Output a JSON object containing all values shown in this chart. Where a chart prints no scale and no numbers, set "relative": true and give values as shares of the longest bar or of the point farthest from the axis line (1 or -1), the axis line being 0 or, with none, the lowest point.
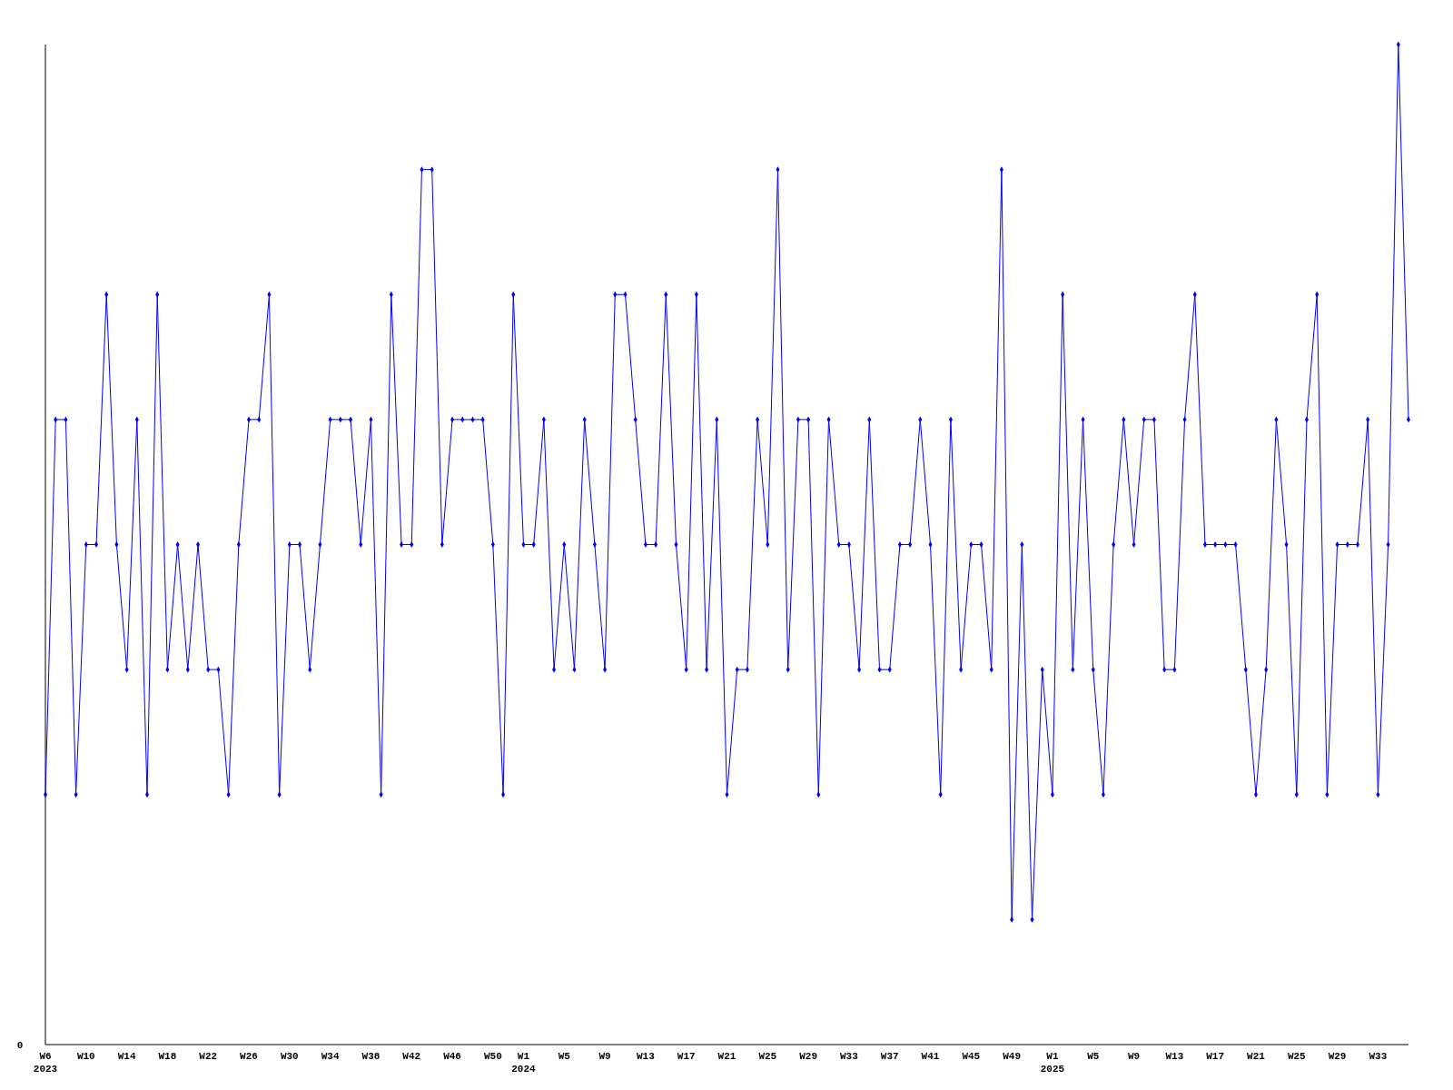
{
  "chart_data": {
    "type": "line",
    "relative": true,
    "marker": "diamond",
    "annotations": [
      "0"
    ],
    "categories": [
      "W6\n2023",
      null,
      null,
      null,
      "W10",
      null,
      null,
      null,
      "W14",
      null,
      null,
      null,
      "W18",
      null,
      null,
      null,
      "W22",
      null,
      null,
      null,
      "W26",
      null,
      null,
      null,
      "W30",
      null,
      null,
      null,
      "W34",
      null,
      null,
      null,
      "W38",
      null,
      null,
      null,
      "W42",
      null,
      null,
      null,
      "W46",
      null,
      null,
      null,
      "W50",
      null,
      null,
      "W1\n2024",
      null,
      null,
      null,
      "W5",
      null,
      null,
      null,
      "W9",
      null,
      null,
      null,
      "W13",
      null,
      null,
      null,
      "W17",
      null,
      null,
      null,
      "W21",
      null,
      null,
      null,
      "W25",
      null,
      null,
      null,
      "W29",
      null,
      null,
      null,
      "W33",
      null,
      null,
      null,
      "W37",
      null,
      null,
      null,
      "W41",
      null,
      null,
      null,
      "W45",
      null,
      null,
      null,
      "W49",
      null,
      null,
      null,
      "W1\n2025",
      null,
      null,
      null,
      "W5",
      null,
      null,
      null,
      "W9",
      null,
      null,
      null,
      "W13",
      null,
      null,
      null,
      "W17",
      null,
      null,
      null,
      "W21",
      null,
      null,
      null,
      "W25",
      null,
      null,
      null,
      "W29",
      null,
      null,
      null,
      "W33",
      null,
      null,
      null
    ],
    "series": [
      {
        "color": "#0000ff",
        "values": [
          0.25,
          0.625,
          0.625,
          0.25,
          0.5,
          0.5,
          0.75,
          0.5,
          0.375,
          0.625,
          0.25,
          0.75,
          0.375,
          0.5,
          0.375,
          0.5,
          0.375,
          0.375,
          0.25,
          0.5,
          0.625,
          0.625,
          0.75,
          0.25,
          0.5,
          0.5,
          0.375,
          0.5,
          0.625,
          0.625,
          0.625,
          0.5,
          0.625,
          0.25,
          0.75,
          0.5,
          0.5,
          0.875,
          0.875,
          0.5,
          0.625,
          0.625,
          0.625,
          0.625,
          0.5,
          0.25,
          0.75,
          0.5,
          0.5,
          0.625,
          0.375,
          0.5,
          0.375,
          0.625,
          0.5,
          0.375,
          0.75,
          0.75,
          0.625,
          0.5,
          0.5,
          0.75,
          0.5,
          0.375,
          0.75,
          0.375,
          0.625,
          0.25,
          0.375,
          0.375,
          0.625,
          0.5,
          0.875,
          0.375,
          0.625,
          0.625,
          0.25,
          0.625,
          0.5,
          0.5,
          0.375,
          0.625,
          0.375,
          0.375,
          0.5,
          0.5,
          0.625,
          0.5,
          0.25,
          0.625,
          0.375,
          0.5,
          0.5,
          0.375,
          0.875,
          0.125,
          0.5,
          0.125,
          0.375,
          0.25,
          0.75,
          0.375,
          0.625,
          0.375,
          0.25,
          0.5,
          0.625,
          0.5,
          0.625,
          0.625,
          0.375,
          0.375,
          0.625,
          0.75,
          0.5,
          0.5,
          0.5,
          0.5,
          0.375,
          0.25,
          0.375,
          0.625,
          0.5,
          0.25,
          0.625,
          0.75,
          0.25,
          0.5,
          0.5,
          0.5,
          0.625,
          0.25,
          0.5,
          1,
          0.625
        ]
      }
    ]
  }
}
